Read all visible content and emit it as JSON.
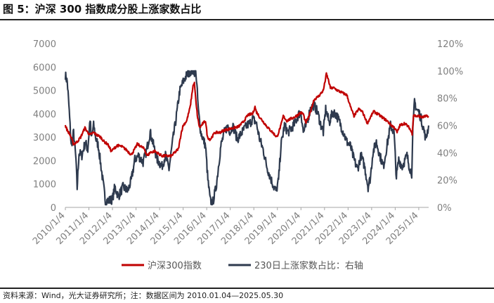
{
  "header": {
    "title": "图 5：沪深 300 指数成分股上涨家数占比"
  },
  "footer": {
    "source": "资料来源：Wind，光大证券研究所；注：数据区间为 2010.01.04—2025.05.30"
  },
  "colors": {
    "index_series": "#c00000",
    "ratio_series": "#2e3a4e",
    "axis": "#a6a6a6",
    "tick_text": "#7f7f7f"
  },
  "chart_data": {
    "type": "line",
    "title": "图 5：沪深 300 指数成分股上涨家数占比",
    "x_ticks": [
      "2010/1/4",
      "2011/1/4",
      "2012/1/4",
      "2013/1/4",
      "2014/1/4",
      "2015/1/4",
      "2016/1/4",
      "2017/1/4",
      "2018/1/4",
      "2019/1/4",
      "2020/1/4",
      "2021/1/4",
      "2022/1/4",
      "2023/1/4",
      "2024/1/4",
      "2025/1/4"
    ],
    "x_range": [
      2010.0,
      2025.42
    ],
    "y_left": {
      "ticks": [
        "0",
        "1000",
        "2000",
        "3000",
        "4000",
        "5000",
        "6000",
        "7000"
      ],
      "lim": [
        0,
        7000
      ]
    },
    "y_right": {
      "ticks": [
        "0%",
        "20%",
        "40%",
        "60%",
        "80%",
        "100%",
        "120%"
      ],
      "lim": [
        0,
        1.2
      ]
    },
    "legend_position": "bottom",
    "series": [
      {
        "name": "沪深300指数",
        "axis": "left",
        "points": [
          [
            2010.0,
            3500
          ],
          [
            2010.08,
            3300
          ],
          [
            2010.2,
            3100
          ],
          [
            2010.35,
            2700
          ],
          [
            2010.5,
            2800
          ],
          [
            2010.65,
            3000
          ],
          [
            2010.83,
            3400
          ],
          [
            2010.95,
            3200
          ],
          [
            2011.05,
            3100
          ],
          [
            2011.2,
            3200
          ],
          [
            2011.33,
            3100
          ],
          [
            2011.5,
            3000
          ],
          [
            2011.65,
            2800
          ],
          [
            2011.8,
            2700
          ],
          [
            2011.95,
            2400
          ],
          [
            2012.05,
            2500
          ],
          [
            2012.2,
            2650
          ],
          [
            2012.4,
            2600
          ],
          [
            2012.6,
            2450
          ],
          [
            2012.8,
            2250
          ],
          [
            2012.95,
            2500
          ],
          [
            2013.05,
            2700
          ],
          [
            2013.15,
            2650
          ],
          [
            2013.35,
            2500
          ],
          [
            2013.48,
            2200
          ],
          [
            2013.6,
            2350
          ],
          [
            2013.8,
            2400
          ],
          [
            2013.95,
            2300
          ],
          [
            2014.1,
            2200
          ],
          [
            2014.3,
            2200
          ],
          [
            2014.5,
            2200
          ],
          [
            2014.65,
            2350
          ],
          [
            2014.8,
            2500
          ],
          [
            2014.92,
            3200
          ],
          [
            2015.0,
            3500
          ],
          [
            2015.15,
            3700
          ],
          [
            2015.3,
            4300
          ],
          [
            2015.42,
            5200
          ],
          [
            2015.48,
            5300
          ],
          [
            2015.55,
            4400
          ],
          [
            2015.62,
            3800
          ],
          [
            2015.7,
            3400
          ],
          [
            2015.85,
            3600
          ],
          [
            2015.95,
            3700
          ],
          [
            2016.03,
            3000
          ],
          [
            2016.15,
            2900
          ],
          [
            2016.35,
            3200
          ],
          [
            2016.55,
            3200
          ],
          [
            2016.75,
            3300
          ],
          [
            2016.95,
            3350
          ],
          [
            2017.15,
            3400
          ],
          [
            2017.35,
            3450
          ],
          [
            2017.55,
            3650
          ],
          [
            2017.75,
            3950
          ],
          [
            2017.95,
            4000
          ],
          [
            2018.05,
            4300
          ],
          [
            2018.1,
            4100
          ],
          [
            2018.25,
            3850
          ],
          [
            2018.45,
            3600
          ],
          [
            2018.6,
            3400
          ],
          [
            2018.8,
            3200
          ],
          [
            2018.98,
            3000
          ],
          [
            2019.15,
            3500
          ],
          [
            2019.25,
            3900
          ],
          [
            2019.4,
            3700
          ],
          [
            2019.6,
            3800
          ],
          [
            2019.8,
            3900
          ],
          [
            2019.98,
            4050
          ],
          [
            2020.1,
            4000
          ],
          [
            2020.2,
            3600
          ],
          [
            2020.35,
            3900
          ],
          [
            2020.55,
            4600
          ],
          [
            2020.75,
            4750
          ],
          [
            2020.95,
            5000
          ],
          [
            2021.08,
            5700
          ],
          [
            2021.15,
            5500
          ],
          [
            2021.25,
            5100
          ],
          [
            2021.4,
            5100
          ],
          [
            2021.55,
            5000
          ],
          [
            2021.75,
            4900
          ],
          [
            2021.95,
            4800
          ],
          [
            2022.1,
            4300
          ],
          [
            2022.25,
            3900
          ],
          [
            2022.45,
            4200
          ],
          [
            2022.6,
            4100
          ],
          [
            2022.82,
            3600
          ],
          [
            2022.98,
            3900
          ],
          [
            2023.08,
            4100
          ],
          [
            2023.25,
            4000
          ],
          [
            2023.45,
            3850
          ],
          [
            2023.65,
            3700
          ],
          [
            2023.85,
            3500
          ],
          [
            2023.98,
            3400
          ],
          [
            2024.08,
            3200
          ],
          [
            2024.2,
            3500
          ],
          [
            2024.4,
            3600
          ],
          [
            2024.6,
            3400
          ],
          [
            2024.72,
            3150
          ],
          [
            2024.78,
            3950
          ],
          [
            2024.88,
            3900
          ],
          [
            2025.0,
            3900
          ],
          [
            2025.15,
            3850
          ],
          [
            2025.3,
            3900
          ],
          [
            2025.42,
            3850
          ]
        ]
      },
      {
        "name": "230日上涨家数占比：右轴",
        "axis": "right",
        "points": [
          [
            2010.0,
            0.97
          ],
          [
            2010.08,
            0.92
          ],
          [
            2010.15,
            0.75
          ],
          [
            2010.25,
            0.45
          ],
          [
            2010.35,
            0.55
          ],
          [
            2010.45,
            0.35
          ],
          [
            2010.5,
            0.14
          ],
          [
            2010.58,
            0.4
          ],
          [
            2010.7,
            0.38
          ],
          [
            2010.85,
            0.48
          ],
          [
            2010.95,
            0.42
          ],
          [
            2011.05,
            0.65
          ],
          [
            2011.1,
            0.5
          ],
          [
            2011.2,
            0.6
          ],
          [
            2011.3,
            0.5
          ],
          [
            2011.4,
            0.45
          ],
          [
            2011.55,
            0.25
          ],
          [
            2011.7,
            0.05
          ],
          [
            2011.85,
            0.05
          ],
          [
            2012.0,
            0.06
          ],
          [
            2012.1,
            0.15
          ],
          [
            2012.25,
            0.08
          ],
          [
            2012.45,
            0.15
          ],
          [
            2012.65,
            0.12
          ],
          [
            2012.8,
            0.2
          ],
          [
            2012.95,
            0.35
          ],
          [
            2013.1,
            0.38
          ],
          [
            2013.3,
            0.33
          ],
          [
            2013.45,
            0.42
          ],
          [
            2013.6,
            0.55
          ],
          [
            2013.75,
            0.45
          ],
          [
            2013.9,
            0.35
          ],
          [
            2014.1,
            0.3
          ],
          [
            2014.25,
            0.38
          ],
          [
            2014.4,
            0.28
          ],
          [
            2014.55,
            0.48
          ],
          [
            2014.7,
            0.65
          ],
          [
            2014.85,
            0.85
          ],
          [
            2015.0,
            0.92
          ],
          [
            2015.15,
            0.97
          ],
          [
            2015.3,
            1.0
          ],
          [
            2015.45,
            1.0
          ],
          [
            2015.55,
            0.98
          ],
          [
            2015.65,
            0.7
          ],
          [
            2015.75,
            0.55
          ],
          [
            2015.85,
            0.5
          ],
          [
            2015.95,
            0.45
          ],
          [
            2016.05,
            0.2
          ],
          [
            2016.15,
            0.05
          ],
          [
            2016.25,
            0.03
          ],
          [
            2016.4,
            0.15
          ],
          [
            2016.6,
            0.45
          ],
          [
            2016.75,
            0.55
          ],
          [
            2016.9,
            0.6
          ],
          [
            2017.0,
            0.55
          ],
          [
            2017.1,
            0.6
          ],
          [
            2017.3,
            0.5
          ],
          [
            2017.5,
            0.55
          ],
          [
            2017.7,
            0.6
          ],
          [
            2017.85,
            0.62
          ],
          [
            2017.95,
            0.65
          ],
          [
            2018.1,
            0.62
          ],
          [
            2018.25,
            0.5
          ],
          [
            2018.4,
            0.42
          ],
          [
            2018.55,
            0.3
          ],
          [
            2018.7,
            0.22
          ],
          [
            2018.85,
            0.15
          ],
          [
            2018.95,
            0.12
          ],
          [
            2019.05,
            0.2
          ],
          [
            2019.15,
            0.45
          ],
          [
            2019.3,
            0.6
          ],
          [
            2019.45,
            0.55
          ],
          [
            2019.6,
            0.58
          ],
          [
            2019.75,
            0.62
          ],
          [
            2019.9,
            0.68
          ],
          [
            2020.0,
            0.7
          ],
          [
            2020.1,
            0.55
          ],
          [
            2020.22,
            0.6
          ],
          [
            2020.4,
            0.72
          ],
          [
            2020.55,
            0.75
          ],
          [
            2020.7,
            0.7
          ],
          [
            2020.85,
            0.6
          ],
          [
            2020.95,
            0.55
          ],
          [
            2021.05,
            0.72
          ],
          [
            2021.2,
            0.62
          ],
          [
            2021.35,
            0.7
          ],
          [
            2021.5,
            0.68
          ],
          [
            2021.65,
            0.62
          ],
          [
            2021.8,
            0.55
          ],
          [
            2021.95,
            0.48
          ],
          [
            2022.1,
            0.45
          ],
          [
            2022.25,
            0.35
          ],
          [
            2022.4,
            0.28
          ],
          [
            2022.55,
            0.38
          ],
          [
            2022.7,
            0.3
          ],
          [
            2022.85,
            0.15
          ],
          [
            2022.95,
            0.22
          ],
          [
            2023.05,
            0.4
          ],
          [
            2023.2,
            0.48
          ],
          [
            2023.35,
            0.38
          ],
          [
            2023.5,
            0.3
          ],
          [
            2023.65,
            0.45
          ],
          [
            2023.8,
            0.6
          ],
          [
            2023.95,
            0.55
          ],
          [
            2024.05,
            0.22
          ],
          [
            2024.15,
            0.35
          ],
          [
            2024.3,
            0.3
          ],
          [
            2024.5,
            0.38
          ],
          [
            2024.6,
            0.3
          ],
          [
            2024.7,
            0.25
          ],
          [
            2024.75,
            0.55
          ],
          [
            2024.82,
            0.78
          ],
          [
            2024.9,
            0.72
          ],
          [
            2025.0,
            0.7
          ],
          [
            2025.1,
            0.65
          ],
          [
            2025.2,
            0.58
          ],
          [
            2025.3,
            0.5
          ],
          [
            2025.42,
            0.6
          ]
        ]
      }
    ]
  }
}
